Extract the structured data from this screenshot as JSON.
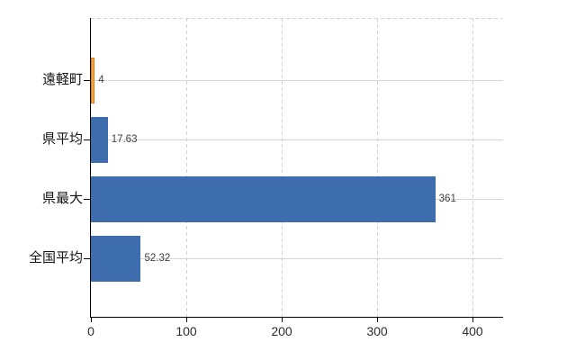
{
  "chart_data": {
    "type": "bar",
    "orientation": "horizontal",
    "title": "",
    "xlabel": "",
    "ylabel": "",
    "categories": [
      "遠軽町",
      "県平均",
      "県最大",
      "全国平均"
    ],
    "values": [
      4,
      17.63,
      361,
      52.32
    ],
    "value_labels": [
      "4",
      "17.63",
      "361",
      "52.32"
    ],
    "bar_colors": [
      "#F5A33C",
      "#3D6DAC",
      "#3D6DAC",
      "#3D6DAC"
    ],
    "bar_border_colors": [
      "#E07D1A",
      "#3D6DAC",
      "#3D6DAC",
      "#3D6DAC"
    ],
    "x_ticks": [
      0,
      100,
      200,
      300,
      400
    ],
    "x_tick_labels": [
      "0",
      "100",
      "200",
      "300",
      "400"
    ],
    "xlim": [
      0,
      432
    ],
    "grid": true,
    "legend": false,
    "colors": {
      "axis": "#000000",
      "gridline": "#D6D6D6",
      "category_label": "#141414",
      "value_label": "#3F3F3F",
      "tick_label": "#2E2E2E",
      "background": "#FFFFFF"
    }
  }
}
